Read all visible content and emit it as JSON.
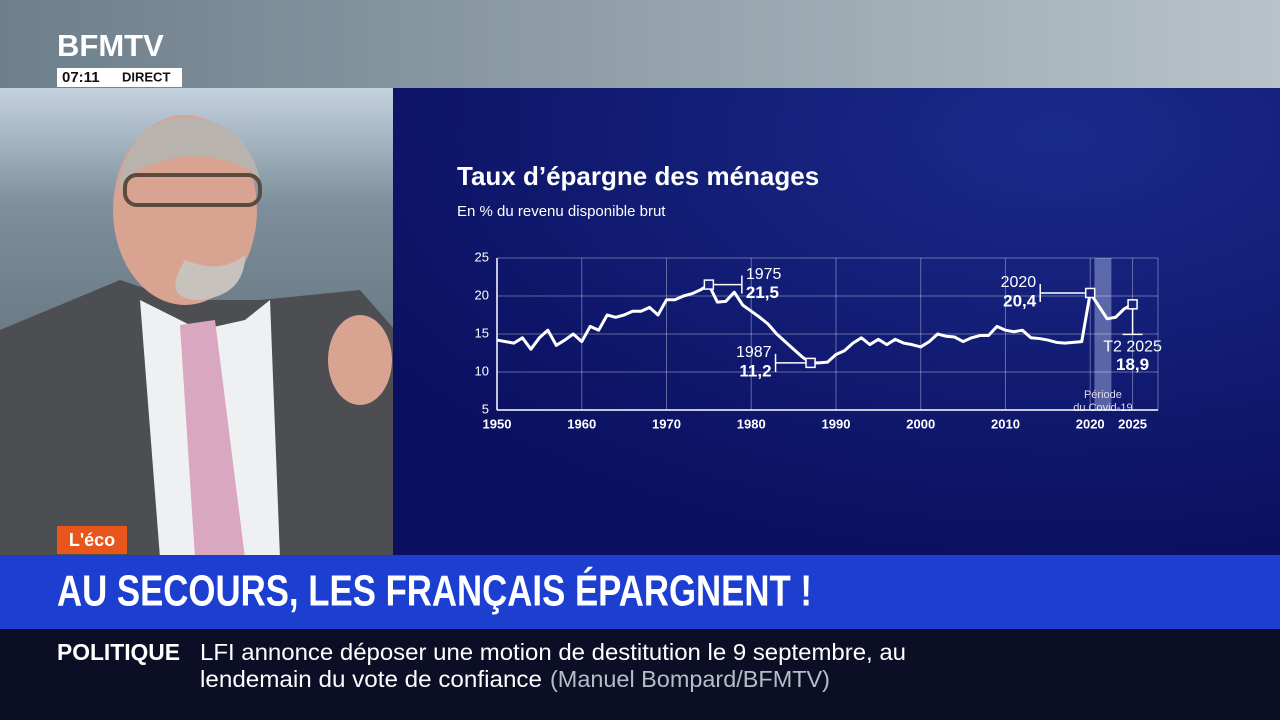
{
  "header": {
    "logo": "BFMTV",
    "time": "07:11",
    "status": "DIRECT"
  },
  "tag": "L'éco",
  "headline": "AU SECOURS, LES FRANÇAIS ÉPARGNENT !",
  "ticker": {
    "section": "POLITIQUE",
    "lines": [
      "LFI annonce déposer une motion de destitution le 9 septembre, au",
      "lendemain du vote de confiance"
    ],
    "source": "(Manuel Bompard/BFMTV)"
  },
  "chart_data": {
    "type": "line",
    "title": "Taux d’épargne des ménages",
    "subtitle": "En % du revenu disponible brut",
    "x": [
      1950,
      1951,
      1952,
      1953,
      1954,
      1955,
      1956,
      1957,
      1958,
      1959,
      1960,
      1961,
      1962,
      1963,
      1964,
      1965,
      1966,
      1967,
      1968,
      1969,
      1970,
      1971,
      1972,
      1973,
      1974,
      1975,
      1976,
      1977,
      1978,
      1979,
      1980,
      1981,
      1982,
      1983,
      1984,
      1985,
      1986,
      1987,
      1988,
      1989,
      1990,
      1991,
      1992,
      1993,
      1994,
      1995,
      1996,
      1997,
      1998,
      1999,
      2000,
      2001,
      2002,
      2003,
      2004,
      2005,
      2006,
      2007,
      2008,
      2009,
      2010,
      2011,
      2012,
      2013,
      2014,
      2015,
      2016,
      2017,
      2018,
      2019,
      2020,
      2021,
      2022,
      2023,
      2024,
      2025
    ],
    "series": [
      {
        "color": "#ffffff",
        "values": [
          14.2,
          14.0,
          13.8,
          14.5,
          13.0,
          14.5,
          15.5,
          13.5,
          14.2,
          15.0,
          14.0,
          16.0,
          15.5,
          17.5,
          17.2,
          17.5,
          18.0,
          18.0,
          18.5,
          17.5,
          19.5,
          19.5,
          20.0,
          20.3,
          20.8,
          21.5,
          19.2,
          19.3,
          20.5,
          18.8,
          18.0,
          17.2,
          16.3,
          15.0,
          14.0,
          13.0,
          12.0,
          11.2,
          11.2,
          11.3,
          12.3,
          12.8,
          13.8,
          14.5,
          13.6,
          14.3,
          13.6,
          14.3,
          13.8,
          13.6,
          13.3,
          14.0,
          15.0,
          14.7,
          14.6,
          14.0,
          14.5,
          14.8,
          14.8,
          16.0,
          15.5,
          15.3,
          15.5,
          14.5,
          14.4,
          14.2,
          13.9,
          13.8,
          13.9,
          14.0,
          20.4,
          18.7,
          17.0,
          17.2,
          18.3,
          18.9
        ]
      }
    ],
    "xlim": [
      1950,
      2028
    ],
    "xticks": [
      1950,
      1960,
      1970,
      1980,
      1990,
      2000,
      2010,
      2020,
      2025
    ],
    "ylim": [
      5,
      25
    ],
    "yticks": [
      5,
      10,
      15,
      20,
      25
    ],
    "grid": true,
    "annotations": [
      {
        "x": 1975,
        "value": 21.5,
        "label": "21,5"
      },
      {
        "x": 1987,
        "value": 11.2,
        "label": "11,2"
      },
      {
        "x": 2020,
        "value": 20.4,
        "label": "20,4"
      },
      {
        "x": 2025,
        "x_label": "T2 2025",
        "value": 18.9,
        "label": "18,9"
      }
    ],
    "shade": {
      "x": [
        2020.5,
        2022.5
      ],
      "label": [
        "Période",
        "du Covid-19"
      ]
    }
  }
}
